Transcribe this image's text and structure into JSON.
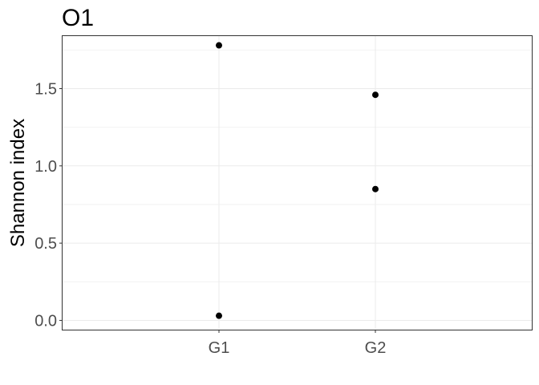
{
  "chart_data": {
    "type": "scatter",
    "title": "O1",
    "xlabel": "",
    "ylabel": "Shannon index",
    "categories": [
      "G1",
      "G2"
    ],
    "ylim": [
      -0.06,
      1.84
    ],
    "yticks": [
      0.0,
      0.5,
      1.0,
      1.5
    ],
    "ytick_labels": [
      "0.0",
      "0.5",
      "1.0",
      "1.5"
    ],
    "grid": true,
    "legend": "none",
    "points": [
      {
        "x": "G1",
        "y": 1.78
      },
      {
        "x": "G1",
        "y": 0.03
      },
      {
        "x": "G2",
        "y": 1.46
      },
      {
        "x": "G2",
        "y": 0.85
      }
    ],
    "colors": {
      "point": "#000000",
      "panel_border": "#333333",
      "grid_major": "#ebebeb",
      "grid_minor": "#f2f2f2",
      "tick_label": "#4d4d4d"
    }
  }
}
